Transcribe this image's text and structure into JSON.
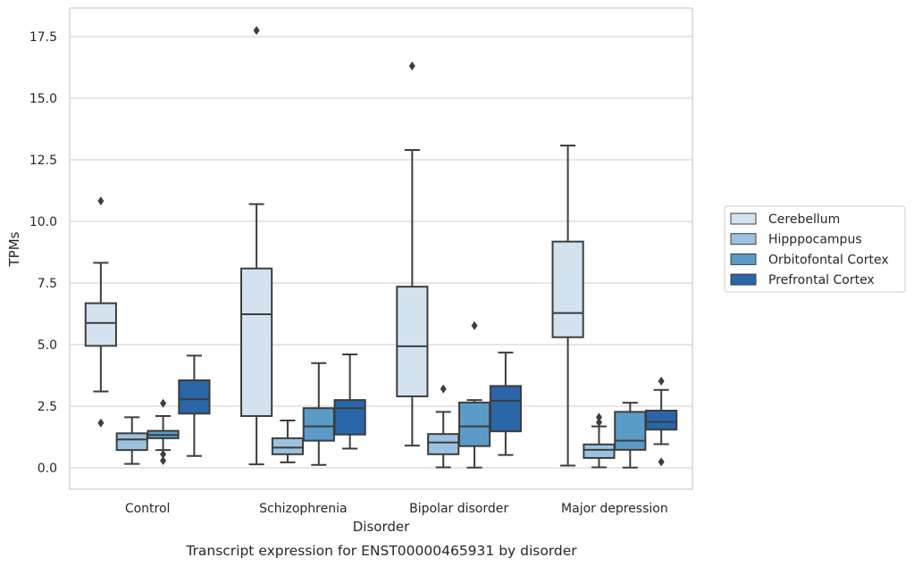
{
  "caption": "Transcript expression for ENST00000465931 by disorder",
  "chart_data": {
    "type": "boxplot",
    "title": "",
    "xlabel": "Disorder",
    "ylabel": "TPMs",
    "ylim": [
      -0.85,
      18.6
    ],
    "yticks": [
      0.0,
      2.5,
      5.0,
      7.5,
      10.0,
      12.5,
      15.0,
      17.5
    ],
    "ytick_labels": [
      "0.0",
      "2.5",
      "5.0",
      "7.5",
      "10.0",
      "12.5",
      "15.0",
      "17.5"
    ],
    "grid": "y",
    "legend_position": "right",
    "categories": [
      "Control",
      "Schizophrenia",
      "Bipolar disorder",
      "Major depression"
    ],
    "series": [
      {
        "name": "Cerebellum",
        "color": "#d4e2f0",
        "boxes": [
          {
            "whislo": 3.1,
            "q1": 4.95,
            "med": 5.88,
            "q3": 6.68,
            "whishi": 8.32,
            "fliers": [
              10.83,
              1.82
            ]
          },
          {
            "whislo": 0.14,
            "q1": 2.1,
            "med": 6.23,
            "q3": 8.09,
            "whishi": 10.7,
            "fliers": [
              17.75
            ]
          },
          {
            "whislo": 0.9,
            "q1": 2.9,
            "med": 4.93,
            "q3": 7.35,
            "whishi": 12.9,
            "fliers": [
              16.31
            ]
          },
          {
            "whislo": 0.09,
            "q1": 5.3,
            "med": 6.28,
            "q3": 9.18,
            "whishi": 13.08,
            "fliers": []
          }
        ]
      },
      {
        "name": "Hipppocampus",
        "color": "#9cc2e0",
        "boxes": [
          {
            "whislo": 0.16,
            "q1": 0.72,
            "med": 1.15,
            "q3": 1.4,
            "whishi": 2.05,
            "fliers": []
          },
          {
            "whislo": 0.22,
            "q1": 0.55,
            "med": 0.82,
            "q3": 1.2,
            "whishi": 1.92,
            "fliers": []
          },
          {
            "whislo": 0.02,
            "q1": 0.55,
            "med": 1.03,
            "q3": 1.37,
            "whishi": 2.27,
            "fliers": [
              3.2
            ]
          },
          {
            "whislo": 0.02,
            "q1": 0.4,
            "med": 0.73,
            "q3": 0.95,
            "whishi": 1.68,
            "fliers": [
              1.85,
              2.05
            ]
          }
        ]
      },
      {
        "name": "Orbitofontal Cortex",
        "color": "#5b9bc8",
        "boxes": [
          {
            "whislo": 0.72,
            "q1": 1.2,
            "med": 1.33,
            "q3": 1.5,
            "whishi": 2.1,
            "fliers": [
              2.62,
              0.55,
              0.29
            ]
          },
          {
            "whislo": 0.12,
            "q1": 1.1,
            "med": 1.68,
            "q3": 2.42,
            "whishi": 4.25,
            "fliers": []
          },
          {
            "whislo": 0.01,
            "q1": 0.88,
            "med": 1.68,
            "q3": 2.65,
            "whishi": 2.75,
            "fliers": [
              5.77
            ]
          },
          {
            "whislo": 0.01,
            "q1": 0.73,
            "med": 1.1,
            "q3": 2.27,
            "whishi": 2.64,
            "fliers": []
          }
        ]
      },
      {
        "name": "Prefrontal Cortex",
        "color": "#2a66a8",
        "boxes": [
          {
            "whislo": 0.48,
            "q1": 2.2,
            "med": 2.78,
            "q3": 3.55,
            "whishi": 4.55,
            "fliers": []
          },
          {
            "whislo": 0.78,
            "q1": 1.35,
            "med": 2.42,
            "q3": 2.75,
            "whishi": 4.6,
            "fliers": []
          },
          {
            "whislo": 0.52,
            "q1": 1.48,
            "med": 2.72,
            "q3": 3.32,
            "whishi": 4.68,
            "fliers": []
          },
          {
            "whislo": 0.96,
            "q1": 1.55,
            "med": 1.86,
            "q3": 2.32,
            "whishi": 3.16,
            "fliers": [
              3.52,
              0.24
            ]
          }
        ]
      }
    ]
  }
}
